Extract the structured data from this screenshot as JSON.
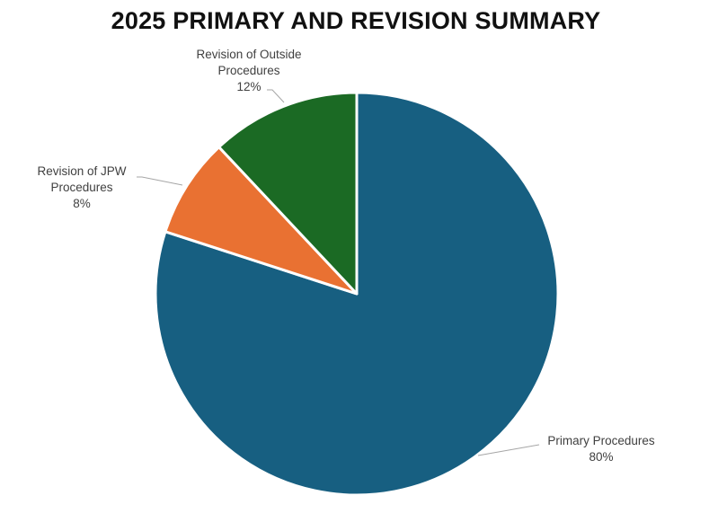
{
  "chart_data": {
    "type": "pie",
    "title": "2025 PRIMARY AND REVISION SUMMARY",
    "slices": [
      {
        "label_lines": [
          "Primary Procedures"
        ],
        "value": 80,
        "value_text": "80%",
        "color": "#175F81"
      },
      {
        "label_lines": [
          "Revision of JPW",
          "Procedures"
        ],
        "value": 8,
        "value_text": "8%",
        "color": "#E97132"
      },
      {
        "label_lines": [
          "Revision of Outside",
          "Procedures"
        ],
        "value": 12,
        "value_text": "12%",
        "color": "#1B6A24"
      }
    ],
    "start_angle": "12 o'clock",
    "direction": "clockwise",
    "legend": "none",
    "labels": "outside with leader lines"
  }
}
